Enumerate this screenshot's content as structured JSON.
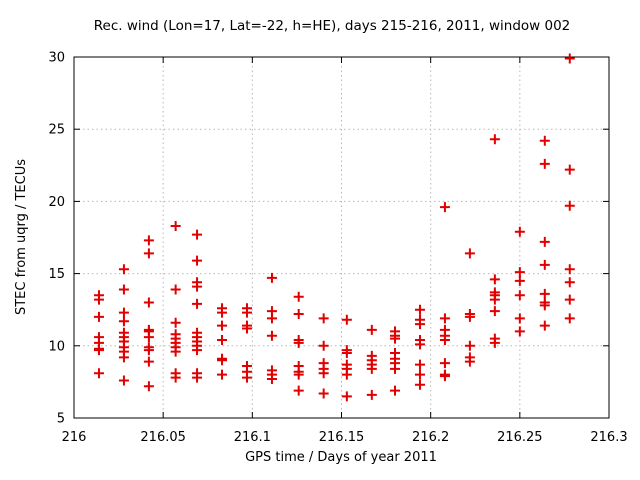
{
  "figure": {
    "background": "#ffffff"
  },
  "chart_data": {
    "type": "scatter",
    "title": "Rec. wind (Lon=17, Lat=-22, h=HE), days 215-216, 2011, window 002",
    "xlabel": "GPS time / Days of year 2011",
    "ylabel": "STEC from uqrg / TECUs",
    "xlim": [
      216.0,
      216.3
    ],
    "ylim": [
      5,
      30
    ],
    "grid": true,
    "legend": "none",
    "axis_color": "#000000",
    "grid_color": "#b8b8b8",
    "marker": {
      "shape": "plus",
      "color": "#e00000",
      "size": 10
    },
    "xticks": [
      {
        "v": 216.0,
        "label": "216"
      },
      {
        "v": 216.05,
        "label": "216.05"
      },
      {
        "v": 216.1,
        "label": "216.1"
      },
      {
        "v": 216.15,
        "label": "216.15"
      },
      {
        "v": 216.2,
        "label": "216.2"
      },
      {
        "v": 216.25,
        "label": "216.25"
      },
      {
        "v": 216.3,
        "label": "216.3"
      }
    ],
    "yticks": [
      {
        "v": 5,
        "label": "5"
      },
      {
        "v": 10,
        "label": "10"
      },
      {
        "v": 15,
        "label": "15"
      },
      {
        "v": 20,
        "label": "20"
      },
      {
        "v": 25,
        "label": "25"
      },
      {
        "v": 30,
        "label": "30"
      }
    ],
    "points": [
      [
        216.014,
        13.5
      ],
      [
        216.014,
        13.2
      ],
      [
        216.014,
        12.0
      ],
      [
        216.014,
        10.6
      ],
      [
        216.014,
        10.2
      ],
      [
        216.014,
        9.8
      ],
      [
        216.014,
        9.7
      ],
      [
        216.014,
        8.1
      ],
      [
        216.028,
        15.3
      ],
      [
        216.028,
        13.9
      ],
      [
        216.028,
        12.3
      ],
      [
        216.028,
        11.7
      ],
      [
        216.028,
        10.9
      ],
      [
        216.028,
        10.6
      ],
      [
        216.028,
        10.3
      ],
      [
        216.028,
        9.9
      ],
      [
        216.028,
        9.6
      ],
      [
        216.028,
        9.2
      ],
      [
        216.028,
        7.6
      ],
      [
        216.042,
        17.3
      ],
      [
        216.042,
        16.4
      ],
      [
        216.042,
        13.0
      ],
      [
        216.042,
        11.1
      ],
      [
        216.042,
        11.0
      ],
      [
        216.042,
        10.6
      ],
      [
        216.042,
        9.9
      ],
      [
        216.042,
        9.7
      ],
      [
        216.042,
        8.9
      ],
      [
        216.042,
        7.2
      ],
      [
        216.057,
        18.3
      ],
      [
        216.057,
        13.9
      ],
      [
        216.057,
        11.6
      ],
      [
        216.057,
        10.8
      ],
      [
        216.057,
        10.5
      ],
      [
        216.057,
        10.2
      ],
      [
        216.057,
        9.9
      ],
      [
        216.057,
        9.6
      ],
      [
        216.057,
        8.1
      ],
      [
        216.057,
        7.8
      ],
      [
        216.069,
        17.7
      ],
      [
        216.069,
        15.9
      ],
      [
        216.069,
        14.4
      ],
      [
        216.069,
        14.1
      ],
      [
        216.069,
        12.9
      ],
      [
        216.069,
        10.9
      ],
      [
        216.069,
        10.6
      ],
      [
        216.069,
        10.3
      ],
      [
        216.069,
        10.0
      ],
      [
        216.069,
        9.7
      ],
      [
        216.069,
        8.1
      ],
      [
        216.069,
        7.8
      ],
      [
        216.083,
        12.6
      ],
      [
        216.083,
        12.3
      ],
      [
        216.083,
        11.4
      ],
      [
        216.083,
        10.4
      ],
      [
        216.083,
        9.1
      ],
      [
        216.083,
        9.0
      ],
      [
        216.083,
        8.0
      ],
      [
        216.097,
        12.6
      ],
      [
        216.097,
        12.3
      ],
      [
        216.097,
        11.4
      ],
      [
        216.097,
        11.2
      ],
      [
        216.097,
        8.6
      ],
      [
        216.097,
        8.2
      ],
      [
        216.097,
        7.8
      ],
      [
        216.111,
        14.7
      ],
      [
        216.111,
        12.4
      ],
      [
        216.111,
        11.9
      ],
      [
        216.111,
        10.7
      ],
      [
        216.111,
        8.3
      ],
      [
        216.111,
        8.0
      ],
      [
        216.111,
        7.7
      ],
      [
        216.126,
        13.4
      ],
      [
        216.126,
        12.2
      ],
      [
        216.126,
        10.4
      ],
      [
        216.126,
        10.2
      ],
      [
        216.126,
        8.6
      ],
      [
        216.126,
        8.2
      ],
      [
        216.126,
        8.0
      ],
      [
        216.126,
        6.9
      ],
      [
        216.14,
        11.9
      ],
      [
        216.14,
        10.0
      ],
      [
        216.14,
        8.8
      ],
      [
        216.14,
        8.4
      ],
      [
        216.14,
        8.1
      ],
      [
        216.14,
        6.7
      ],
      [
        216.153,
        11.8
      ],
      [
        216.153,
        9.7
      ],
      [
        216.153,
        9.5
      ],
      [
        216.153,
        8.7
      ],
      [
        216.153,
        8.4
      ],
      [
        216.153,
        8.0
      ],
      [
        216.153,
        6.5
      ],
      [
        216.167,
        11.1
      ],
      [
        216.167,
        9.3
      ],
      [
        216.167,
        9.0
      ],
      [
        216.167,
        8.7
      ],
      [
        216.167,
        8.4
      ],
      [
        216.167,
        6.6
      ],
      [
        216.18,
        11.0
      ],
      [
        216.18,
        10.7
      ],
      [
        216.18,
        10.5
      ],
      [
        216.18,
        9.5
      ],
      [
        216.18,
        9.1
      ],
      [
        216.18,
        8.8
      ],
      [
        216.18,
        8.4
      ],
      [
        216.18,
        6.9
      ],
      [
        216.194,
        12.5
      ],
      [
        216.194,
        11.8
      ],
      [
        216.194,
        11.5
      ],
      [
        216.194,
        10.4
      ],
      [
        216.194,
        10.1
      ],
      [
        216.194,
        8.7
      ],
      [
        216.194,
        8.0
      ],
      [
        216.194,
        7.3
      ],
      [
        216.208,
        19.6
      ],
      [
        216.208,
        11.9
      ],
      [
        216.208,
        11.1
      ],
      [
        216.208,
        10.7
      ],
      [
        216.208,
        10.4
      ],
      [
        216.208,
        8.8
      ],
      [
        216.208,
        8.0
      ],
      [
        216.208,
        7.9
      ],
      [
        216.222,
        16.4
      ],
      [
        216.222,
        12.2
      ],
      [
        216.222,
        12.0
      ],
      [
        216.222,
        10.0
      ],
      [
        216.222,
        9.2
      ],
      [
        216.222,
        8.9
      ],
      [
        216.236,
        24.3
      ],
      [
        216.236,
        14.6
      ],
      [
        216.236,
        13.7
      ],
      [
        216.236,
        13.5
      ],
      [
        216.236,
        13.2
      ],
      [
        216.236,
        12.4
      ],
      [
        216.236,
        10.5
      ],
      [
        216.236,
        10.2
      ],
      [
        216.25,
        17.9
      ],
      [
        216.25,
        15.1
      ],
      [
        216.25,
        14.5
      ],
      [
        216.25,
        13.5
      ],
      [
        216.25,
        11.9
      ],
      [
        216.25,
        11.0
      ],
      [
        216.264,
        24.2
      ],
      [
        216.264,
        22.6
      ],
      [
        216.264,
        17.2
      ],
      [
        216.264,
        15.6
      ],
      [
        216.264,
        13.6
      ],
      [
        216.264,
        13.0
      ],
      [
        216.264,
        12.8
      ],
      [
        216.264,
        11.4
      ],
      [
        216.278,
        29.9
      ],
      [
        216.278,
        22.2
      ],
      [
        216.278,
        19.7
      ],
      [
        216.278,
        15.3
      ],
      [
        216.278,
        14.4
      ],
      [
        216.278,
        13.2
      ],
      [
        216.278,
        11.9
      ]
    ]
  }
}
